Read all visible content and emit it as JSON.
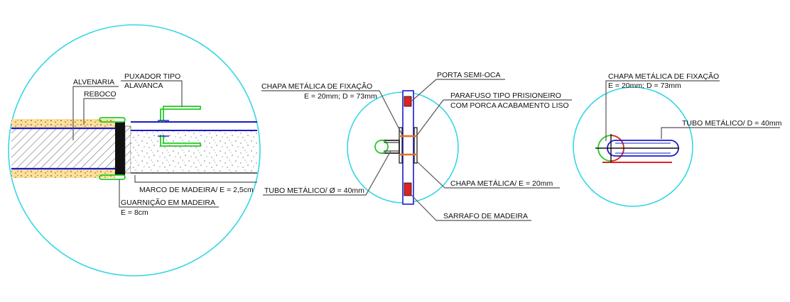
{
  "colors": {
    "circle": "#36d6e6",
    "blue": "#1a1acc",
    "green": "#22cc22",
    "red": "#e02222",
    "yellow": "#f6e39a",
    "hatch": "#888888"
  },
  "detail1": {
    "alvenaria": "ALVENARIA",
    "reboco": "REBOCO",
    "puxador_line1": "PUXADOR TIPO",
    "puxador_line2": "ALAVANCA",
    "marco": "MARCO DE MADEIRA/ E = 2,5cm",
    "guarnicao_line1": "GUARNIÇÃO EM MADEIRA",
    "guarnicao_line2": "E = 8cm"
  },
  "detail2": {
    "chapa_fix_line1": "CHAPA METÁLICA DE FIXAÇÃO",
    "chapa_fix_line2": "E = 20mm; D = 73mm",
    "porta": "PORTA SEMI-OCA",
    "parafuso_line1": "PARAFUSO TIPO PRISIONEIRO",
    "parafuso_line2": "COM PORCA ACABAMENTO LISO",
    "tubo": "TUBO METÁLICO/ Ø = 40mm",
    "chapa": "CHAPA METÁLICA/ E = 20mm",
    "sarrafo": "SARRAFO DE MADEIRA"
  },
  "detail3": {
    "chapa_fix_line1": "CHAPA METÁLICA DE FIXAÇÃO",
    "chapa_fix_line2": "E = 20mm; D = 73mm",
    "tubo": "TUBO METÁLICO/ D = 40mm"
  }
}
